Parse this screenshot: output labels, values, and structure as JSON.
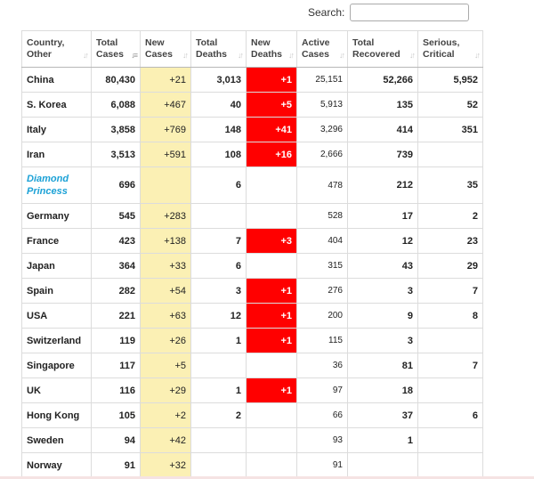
{
  "search": {
    "label": "Search:",
    "value": "",
    "placeholder": ""
  },
  "colors": {
    "new_cases_bg": "#fbf0b4",
    "new_deaths_bg": "#ff0000",
    "link": "#1ba1d6"
  },
  "headers": [
    {
      "line1": "Country,",
      "line2": "Other",
      "sort_icon": "sort-both-icon"
    },
    {
      "line1": "Total",
      "line2": "Cases",
      "sort_icon": "sort-desc-active-icon"
    },
    {
      "line1": "New",
      "line2": "Cases",
      "sort_icon": "sort-both-icon"
    },
    {
      "line1": "Total",
      "line2": "Deaths",
      "sort_icon": "sort-both-icon"
    },
    {
      "line1": "New",
      "line2": "Deaths",
      "sort_icon": "sort-both-icon"
    },
    {
      "line1": "Active",
      "line2": "Cases",
      "sort_icon": "sort-both-icon"
    },
    {
      "line1": "Total",
      "line2": "Recovered",
      "sort_icon": "sort-both-icon"
    },
    {
      "line1": "Serious,",
      "line2": "Critical",
      "sort_icon": "sort-both-icon"
    }
  ],
  "rows": [
    {
      "country": "China",
      "total_cases": "80,430",
      "new_cases": "+21",
      "total_deaths": "3,013",
      "new_deaths": "+1",
      "active_cases": "25,151",
      "total_recovered": "52,266",
      "serious": "5,952"
    },
    {
      "country": "S. Korea",
      "total_cases": "6,088",
      "new_cases": "+467",
      "total_deaths": "40",
      "new_deaths": "+5",
      "active_cases": "5,913",
      "total_recovered": "135",
      "serious": "52"
    },
    {
      "country": "Italy",
      "total_cases": "3,858",
      "new_cases": "+769",
      "total_deaths": "148",
      "new_deaths": "+41",
      "active_cases": "3,296",
      "total_recovered": "414",
      "serious": "351"
    },
    {
      "country": "Iran",
      "total_cases": "3,513",
      "new_cases": "+591",
      "total_deaths": "108",
      "new_deaths": "+16",
      "active_cases": "2,666",
      "total_recovered": "739",
      "serious": ""
    },
    {
      "country": "Diamond Princess",
      "total_cases": "696",
      "new_cases": "",
      "total_deaths": "6",
      "new_deaths": "",
      "active_cases": "478",
      "total_recovered": "212",
      "serious": "35"
    },
    {
      "country": "Germany",
      "total_cases": "545",
      "new_cases": "+283",
      "total_deaths": "",
      "new_deaths": "",
      "active_cases": "528",
      "total_recovered": "17",
      "serious": "2"
    },
    {
      "country": "France",
      "total_cases": "423",
      "new_cases": "+138",
      "total_deaths": "7",
      "new_deaths": "+3",
      "active_cases": "404",
      "total_recovered": "12",
      "serious": "23"
    },
    {
      "country": "Japan",
      "total_cases": "364",
      "new_cases": "+33",
      "total_deaths": "6",
      "new_deaths": "",
      "active_cases": "315",
      "total_recovered": "43",
      "serious": "29"
    },
    {
      "country": "Spain",
      "total_cases": "282",
      "new_cases": "+54",
      "total_deaths": "3",
      "new_deaths": "+1",
      "active_cases": "276",
      "total_recovered": "3",
      "serious": "7"
    },
    {
      "country": "USA",
      "total_cases": "221",
      "new_cases": "+63",
      "total_deaths": "12",
      "new_deaths": "+1",
      "active_cases": "200",
      "total_recovered": "9",
      "serious": "8"
    },
    {
      "country": "Switzerland",
      "total_cases": "119",
      "new_cases": "+26",
      "total_deaths": "1",
      "new_deaths": "+1",
      "active_cases": "115",
      "total_recovered": "3",
      "serious": ""
    },
    {
      "country": "Singapore",
      "total_cases": "117",
      "new_cases": "+5",
      "total_deaths": "",
      "new_deaths": "",
      "active_cases": "36",
      "total_recovered": "81",
      "serious": "7"
    },
    {
      "country": "UK",
      "total_cases": "116",
      "new_cases": "+29",
      "total_deaths": "1",
      "new_deaths": "+1",
      "active_cases": "97",
      "total_recovered": "18",
      "serious": ""
    },
    {
      "country": "Hong Kong",
      "total_cases": "105",
      "new_cases": "+2",
      "total_deaths": "2",
      "new_deaths": "",
      "active_cases": "66",
      "total_recovered": "37",
      "serious": "6"
    },
    {
      "country": "Sweden",
      "total_cases": "94",
      "new_cases": "+42",
      "total_deaths": "",
      "new_deaths": "",
      "active_cases": "93",
      "total_recovered": "1",
      "serious": ""
    },
    {
      "country": "Norway",
      "total_cases": "91",
      "new_cases": "+32",
      "total_deaths": "",
      "new_deaths": "",
      "active_cases": "91",
      "total_recovered": "",
      "serious": ""
    }
  ]
}
